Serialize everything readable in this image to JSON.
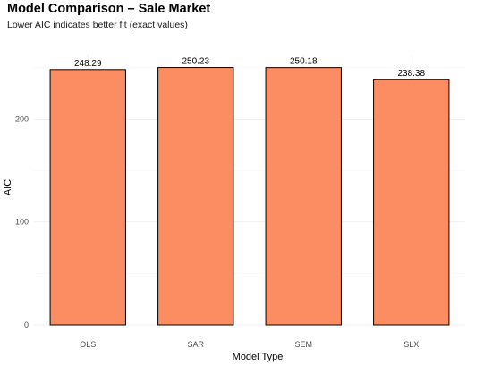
{
  "chart_data": {
    "type": "bar",
    "title": "Model Comparison – Sale Market",
    "subtitle": "Lower AIC indicates better fit (exact values)",
    "xlabel": "Model Type",
    "ylabel": "AIC",
    "categories": [
      "OLS",
      "SAR",
      "SEM",
      "SLX"
    ],
    "values": [
      248.29,
      250.23,
      250.18,
      238.38
    ],
    "data_labels": [
      "248.29",
      "250.23",
      "250.18",
      "238.38"
    ],
    "yticks": [
      0,
      100,
      200
    ],
    "ylim": [
      0,
      262
    ],
    "bar_color": "#fc8d62",
    "bar_outline": "#000000",
    "grid": true,
    "legend": "none"
  }
}
